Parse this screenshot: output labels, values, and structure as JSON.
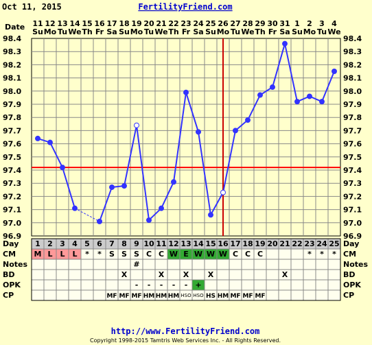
{
  "header": {
    "date_title": "Oct 11, 2015",
    "site_name": "FertilityFriend.com"
  },
  "footer": {
    "url": "http://www.FertilityFriend.com",
    "copyright": "Copyright 1998-2015 Tamtris Web Services Inc. - All Rights Reserved."
  },
  "colors": {
    "temp_line": "#3333FF",
    "coverline": "#FF0000",
    "ovulation_line": "#CC0000",
    "grid": "#888888",
    "menses_cell": "#FF9999",
    "eggwhite_cell": "#33AA33",
    "opk_positive_cell": "#33AA33",
    "day_row_bg": "#CCCCCC"
  },
  "chart_data": {
    "type": "line",
    "title": "",
    "xlabel": "Date",
    "ylabel": "",
    "ylim": [
      96.9,
      98.4
    ],
    "y_ticks": [
      "98.4",
      "98.3",
      "98.2",
      "98.1",
      "98.0",
      "97.9",
      "97.8",
      "97.7",
      "97.6",
      "97.5",
      "97.4",
      "97.3",
      "97.2",
      "97.1",
      "97.0",
      "96.9"
    ],
    "dates": [
      "11",
      "12",
      "13",
      "14",
      "15",
      "16",
      "17",
      "18",
      "19",
      "20",
      "21",
      "22",
      "23",
      "24",
      "25",
      "26",
      "27",
      "28",
      "29",
      "30",
      "31",
      "1",
      "2",
      "3",
      "4"
    ],
    "weekdays": [
      "Su",
      "Mo",
      "Tu",
      "We",
      "Th",
      "Fr",
      "Sa",
      "Su",
      "Mo",
      "Tu",
      "We",
      "Th",
      "Fr",
      "Sa",
      "Su",
      "Mo",
      "Tu",
      "We",
      "Th",
      "Fr",
      "Sa",
      "Su",
      "Mo",
      "Tu",
      "We"
    ],
    "cycle_days": [
      "1",
      "2",
      "3",
      "4",
      "5",
      "6",
      "7",
      "8",
      "9",
      "10",
      "11",
      "12",
      "13",
      "14",
      "15",
      "16",
      "17",
      "18",
      "19",
      "20",
      "21",
      "22",
      "23",
      "24",
      "25"
    ],
    "series": [
      {
        "values": [
          97.64,
          97.61,
          97.42,
          97.11,
          null,
          97.01,
          97.27,
          97.28,
          97.74,
          97.02,
          97.11,
          97.31,
          97.99,
          97.69,
          97.06,
          97.23,
          97.7,
          97.78,
          97.97,
          98.03,
          98.36,
          97.92,
          97.96,
          97.92,
          98.15
        ],
        "open_markers_day": [
          "9",
          "16"
        ],
        "dashed_segment_days": [
          "4",
          "6"
        ]
      }
    ],
    "coverline": 97.42,
    "ovulation_day": "16",
    "grid": true
  },
  "rows": {
    "labels": {
      "day": "Day",
      "cm": "CM",
      "notes": "Notes",
      "bd": "BD",
      "opk": "OPK",
      "cp": "CP"
    },
    "cm": [
      "M",
      "L",
      "L",
      "L",
      "*",
      "*",
      "S",
      "S",
      "S",
      "C",
      "C",
      "W",
      "E",
      "W",
      "W",
      "W",
      "C",
      "C",
      "C",
      "",
      "",
      "",
      "*",
      "*",
      "*"
    ],
    "cm_colors": [
      "menses",
      "menses",
      "menses",
      "menses",
      "",
      "",
      "",
      "",
      "",
      "",
      "",
      "eggwhite",
      "eggwhite",
      "eggwhite",
      "eggwhite",
      "eggwhite",
      "",
      "",
      "",
      "",
      "",
      "",
      "",
      "",
      ""
    ],
    "notes": [
      "",
      "",
      "",
      "",
      "",
      "",
      "",
      "",
      "#",
      "",
      "",
      "",
      "",
      "",
      "",
      "",
      "",
      "",
      "",
      "",
      "",
      "",
      "",
      "",
      ""
    ],
    "bd": [
      "",
      "",
      "",
      "",
      "",
      "",
      "",
      "X",
      "",
      "",
      "X",
      "",
      "X",
      "",
      "X",
      "",
      "",
      "",
      "",
      "",
      "X",
      "",
      "",
      "",
      ""
    ],
    "opk": [
      "",
      "",
      "",
      "",
      "",
      "",
      "",
      "",
      "-",
      "-",
      "-",
      "-",
      "-",
      "+",
      "",
      "",
      "",
      "",
      "",
      "",
      "",
      "",
      "",
      "",
      ""
    ],
    "opk_colors": [
      "",
      "",
      "",
      "",
      "",
      "",
      "",
      "",
      "",
      "",
      "",
      "",
      "",
      "positive",
      "",
      "",
      "",
      "",
      "",
      "",
      "",
      "",
      "",
      "",
      ""
    ],
    "cp": [
      "",
      "",
      "",
      "",
      "",
      "",
      "MF",
      "MF",
      "MF",
      "HM",
      "HM",
      "HM",
      "HSO",
      "HSO",
      "HS",
      "HM",
      "MF",
      "MF",
      "MF",
      "",
      "",
      "",
      "",
      "",
      ""
    ]
  }
}
